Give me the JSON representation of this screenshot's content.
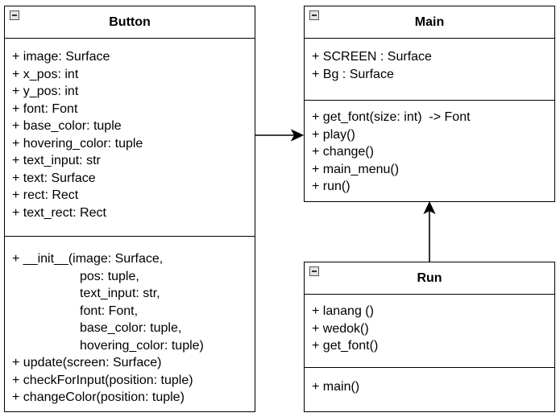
{
  "classes": {
    "button": {
      "name": "Button",
      "attributes": [
        "+ image: Surface",
        "+ x_pos: int",
        "+ y_pos: int",
        "+ font: Font",
        "+ base_color: tuple",
        "+ hovering_color: tuple",
        "+ text_input: str",
        "+ text: Surface",
        "+ rect: Rect",
        "+ text_rect: Rect"
      ],
      "methods": [
        "+ __init__(image: Surface,",
        "pos: tuple,",
        "text_input: str,",
        "font: Font,",
        "base_color: tuple,",
        "hovering_color: tuple)",
        "+ update(screen: Surface)",
        "+ checkForInput(position: tuple)",
        "+ changeColor(position: tuple)"
      ]
    },
    "main": {
      "name": "Main",
      "attributes": [
        "+ SCREEN : Surface",
        "+ Bg : Surface"
      ],
      "methods": [
        "+ get_font(size: int)  -> Font",
        "+ play()",
        "+ change()",
        "+ main_menu()",
        "+ run()"
      ]
    },
    "run": {
      "name": "Run",
      "attributes": [
        "+ lanang ()",
        "+ wedok()",
        "+ get_font()"
      ],
      "methods": [
        "+ main()"
      ]
    }
  },
  "relations": [
    {
      "from": "Button",
      "to": "Main",
      "type": "association-arrow"
    },
    {
      "from": "Run",
      "to": "Main",
      "type": "association-arrow"
    }
  ]
}
